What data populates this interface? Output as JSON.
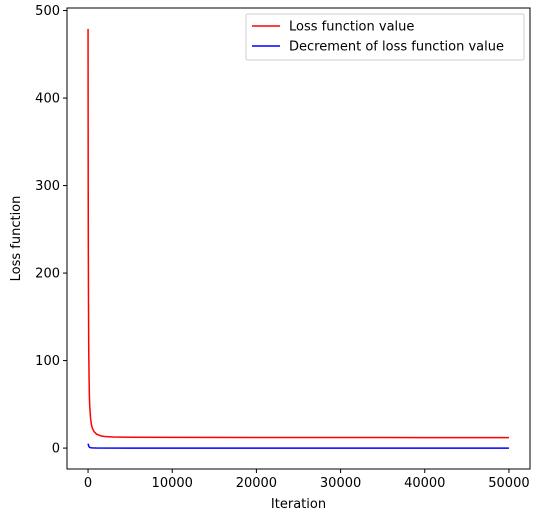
{
  "chart_data": {
    "type": "line",
    "xlabel": "Iteration",
    "ylabel": "Loss function",
    "xlim": [
      -2500,
      52500
    ],
    "ylim": [
      -23.9,
      502.9
    ],
    "xticks": [
      0,
      10000,
      20000,
      30000,
      40000,
      50000
    ],
    "yticks": [
      0,
      100,
      200,
      300,
      400,
      500
    ],
    "grid": false,
    "legend_position": "top-right",
    "series": [
      {
        "name": "Loss function value",
        "color": "#ff0000",
        "x": [
          0,
          10,
          20,
          30,
          50,
          80,
          120,
          160,
          200,
          300,
          400,
          500,
          700,
          1000,
          1500,
          2000,
          3000,
          5000,
          10000,
          20000,
          30000,
          40000,
          50000
        ],
        "y": [
          479,
          380,
          300,
          240,
          170,
          115,
          80,
          60,
          48,
          34,
          27,
          23,
          19,
          16,
          14,
          13.3,
          12.7,
          12.4,
          12.2,
          12.1,
          12.05,
          12.02,
          12.0
        ]
      },
      {
        "name": "Decrement of loss function value",
        "color": "#0000ff",
        "x": [
          0,
          30,
          60,
          100,
          150,
          200,
          300,
          500,
          1000,
          5000,
          10000,
          20000,
          30000,
          40000,
          50000
        ],
        "y": [
          5.0,
          4.0,
          3.0,
          2.0,
          1.2,
          0.8,
          0.4,
          0.2,
          0.05,
          0.01,
          0,
          0,
          0,
          0,
          0
        ]
      }
    ]
  }
}
